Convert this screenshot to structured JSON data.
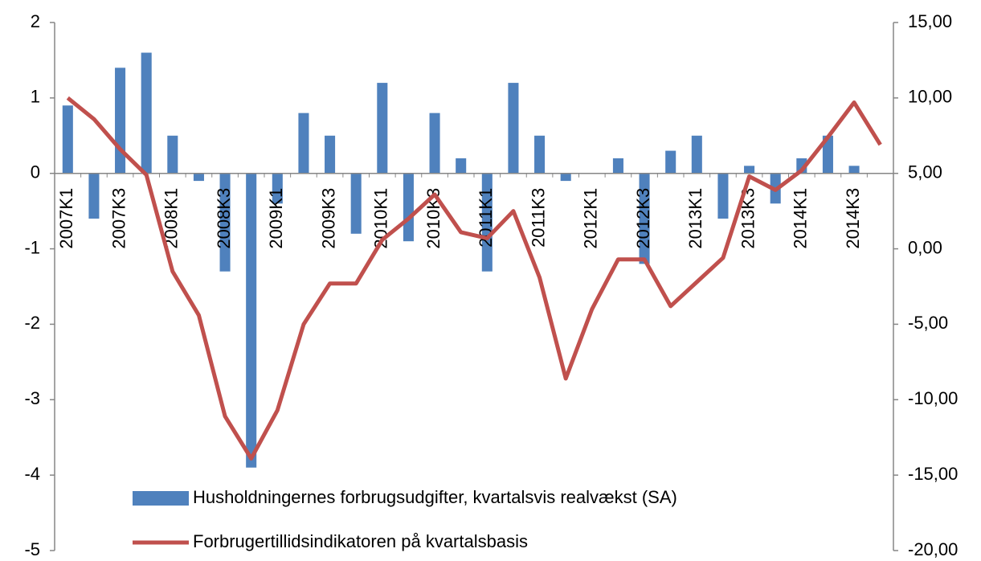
{
  "chart_data": {
    "type": "bar_line",
    "categories": [
      "2007K1",
      null,
      "2007K3",
      null,
      "2008K1",
      null,
      "2008K3",
      null,
      "2009K1",
      null,
      "2009K3",
      null,
      "2010K1",
      null,
      "2010K3",
      null,
      "2011K1",
      null,
      "2011K3",
      null,
      "2012K1",
      null,
      "2012K3",
      null,
      "2013K1",
      null,
      "2013K3",
      null,
      "2014K1",
      null,
      "2014K3",
      null
    ],
    "series": [
      {
        "name": "Husholdningernes forbrugsudgifter, kvartalsvis realvækst (SA)",
        "type": "bar",
        "color": "#4f81bd",
        "axis": "y",
        "values": [
          0.9,
          -0.6,
          1.4,
          1.6,
          0.5,
          -0.1,
          -1.3,
          -3.9,
          -0.4,
          0.8,
          0.5,
          -0.8,
          1.2,
          -0.9,
          0.8,
          0.2,
          -1.3,
          1.2,
          0.5,
          -0.1,
          0,
          0.2,
          -1.2,
          0.3,
          0.5,
          -0.6,
          0.1,
          -0.4,
          0.2,
          0.5,
          0.1,
          null
        ]
      },
      {
        "name": "Forbrugertillidsindikatoren på kvartalsbasis",
        "type": "line",
        "color": "#c0504d",
        "axis": "y2",
        "values": [
          10.0,
          8.6,
          6.6,
          4.9,
          -1.5,
          -4.4,
          -11.1,
          -13.9,
          -10.7,
          -5.0,
          -2.3,
          -2.3,
          0.6,
          2.0,
          3.6,
          1.1,
          0.7,
          2.5,
          -1.9,
          -8.6,
          -4.0,
          -0.7,
          -0.7,
          -3.8,
          -2.2,
          -0.6,
          4.8,
          3.9,
          5.2,
          7.4,
          9.7,
          6.9
        ]
      }
    ],
    "ylim": [
      -5,
      2
    ],
    "yticks": [
      -5,
      -4,
      -3,
      -2,
      -1,
      0,
      1,
      2
    ],
    "y2lim": [
      -20,
      15
    ],
    "y2ticks": [
      {
        "value": -20,
        "label": "-20,00"
      },
      {
        "value": -15,
        "label": "-15,00"
      },
      {
        "value": -10,
        "label": "-10,00"
      },
      {
        "value": -5,
        "label": "-5,00"
      },
      {
        "value": 0,
        "label": "0,00"
      },
      {
        "value": 5,
        "label": "5,00"
      },
      {
        "value": 10,
        "label": "10,00"
      },
      {
        "value": 15,
        "label": "15,00"
      }
    ],
    "legend": "bottom"
  }
}
